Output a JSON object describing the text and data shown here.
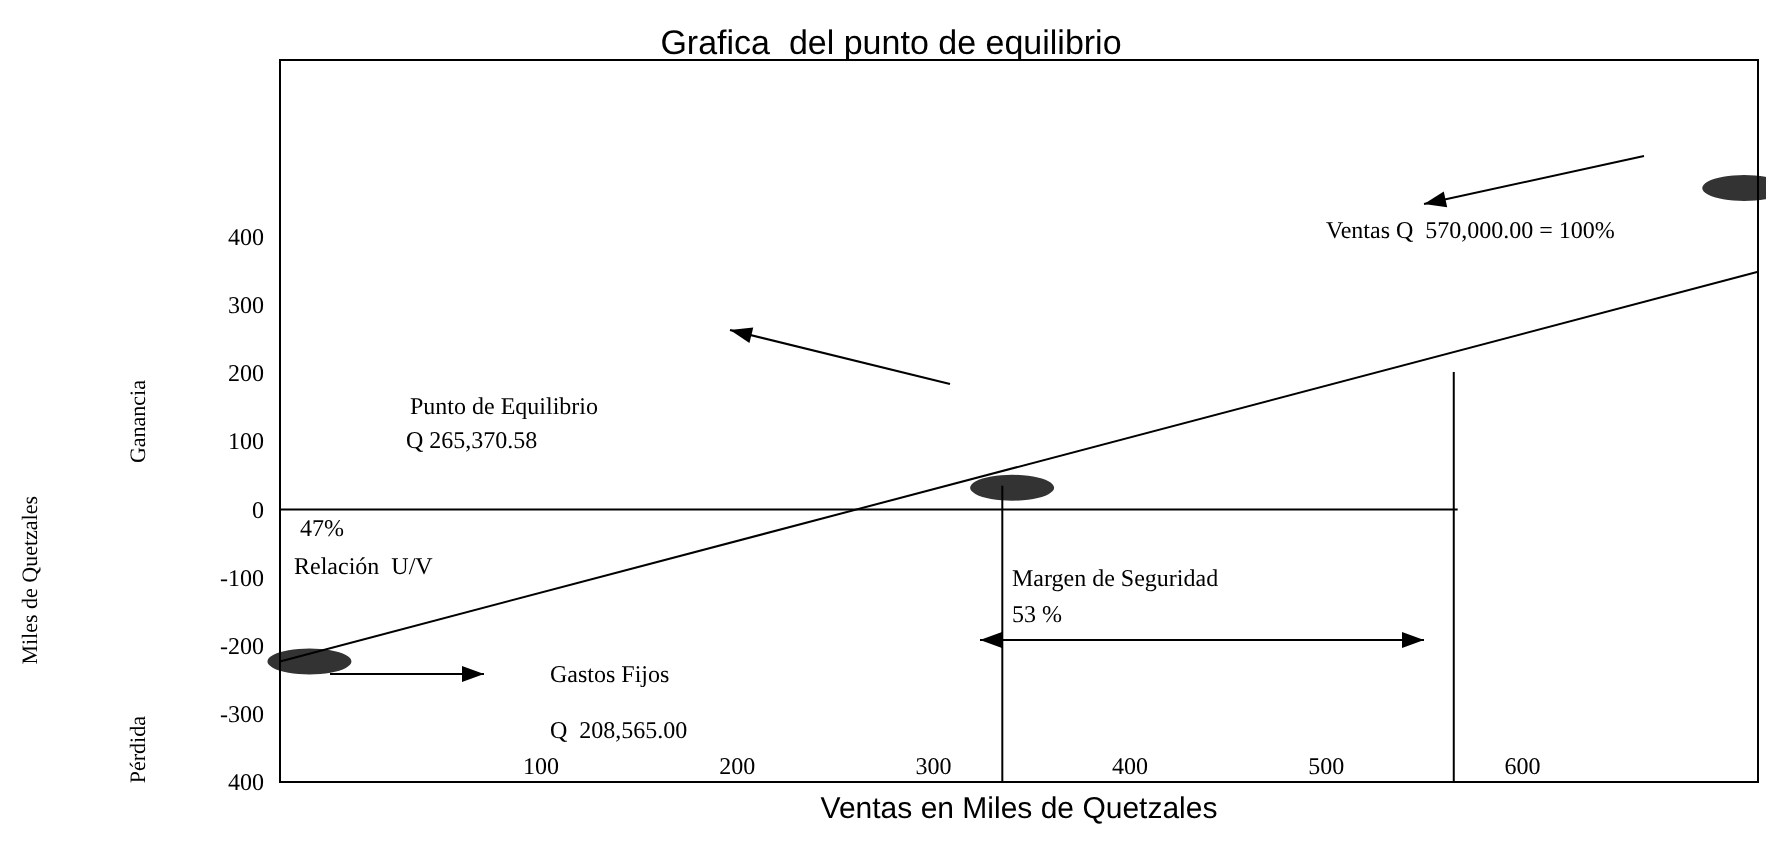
{
  "chart_data": {
    "type": "line",
    "title": "Grafica  del punto de equilibrio",
    "xlabel": "Ventas en Miles de Quetzales",
    "xlim": [
      -33,
      720
    ],
    "ylim": [
      -400,
      660
    ],
    "xticks": [
      100,
      200,
      300,
      400,
      500,
      600
    ],
    "yticks": [
      400,
      300,
      200,
      100,
      0,
      -100,
      -200,
      -300,
      {
        "value": -400,
        "label": "400"
      }
    ],
    "grid": false,
    "marker": "none",
    "line_style": "solid",
    "series": [
      {
        "type": "line",
        "color": "#000000",
        "x": [
          -33,
          720
        ],
        "values": [
          -223,
          349
        ]
      },
      {
        "type": "line",
        "color": "#000000",
        "x": [
          -33,
          567
        ],
        "values": [
          0,
          0
        ]
      },
      {
        "type": "line",
        "color": "#000000",
        "x": [
          335,
          335
        ],
        "values": [
          35,
          -400
        ]
      },
      {
        "type": "line",
        "color": "#000000",
        "x": [
          565,
          565
        ],
        "values": [
          202,
          -400
        ]
      },
      {
        "type": "scatter",
        "marker": "circle",
        "color": "#000000",
        "x": [
          -18,
          340,
          713
        ],
        "values": [
          -223,
          32,
          472
        ]
      }
    ],
    "annotations": [
      "Ganancia",
      "Pérdida",
      "Miles de Quetzales",
      "Ventas Q  570,000.00 = 100%",
      "Punto de Equilibrio",
      "Q 265,370.58",
      "47%",
      "Relación  U/V",
      "Margen de Seguridad",
      "53 %",
      "Gastos Fijos",
      "Q  208,565.00"
    ]
  }
}
